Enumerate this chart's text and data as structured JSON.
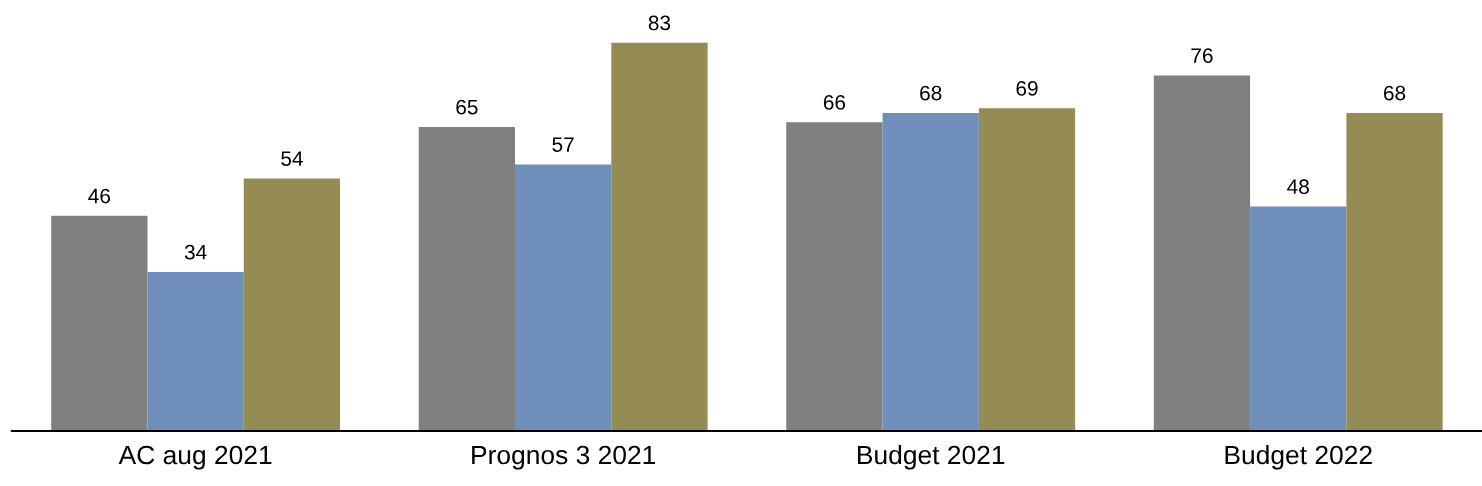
{
  "chart_data": {
    "type": "bar",
    "categories": [
      "AC aug 2021",
      "Prognos 3 2021",
      "Budget 2021",
      "Budget 2022"
    ],
    "series": [
      {
        "color": "#808080",
        "values": [
          46,
          65,
          66,
          76
        ]
      },
      {
        "color": "#6f8fba",
        "values": [
          34,
          57,
          68,
          48
        ]
      },
      {
        "color": "#958b55",
        "values": [
          54,
          83,
          69,
          68
        ]
      }
    ],
    "data_labels": true
  }
}
